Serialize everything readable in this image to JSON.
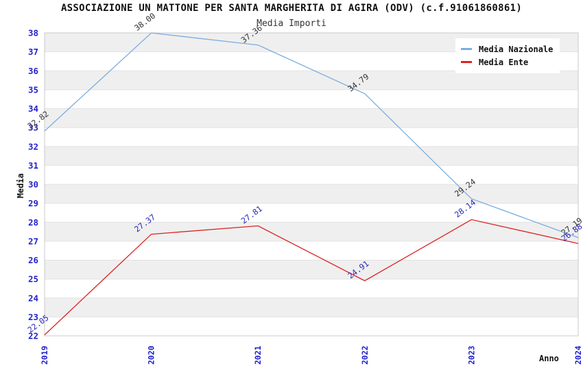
{
  "title": "ASSOCIAZIONE UN MATTONE PER SANTA MARGHERITA DI AGIRA (ODV) (c.f.91061860861)",
  "subtitle": "Media Importi",
  "chart_data": {
    "type": "line",
    "x": [
      "2019",
      "2020",
      "2021",
      "2022",
      "2023",
      "2024"
    ],
    "xlabel": "Anno",
    "ylabel": "Media",
    "ylim": [
      22,
      38
    ],
    "ytick_step": 1,
    "grid": "alternating-horizontal-bands",
    "legend_position": "top-right",
    "series": [
      {
        "name": "Media Nazionale",
        "color": "#7cace0",
        "label_color": "#333333",
        "values": [
          32.82,
          38.0,
          37.36,
          34.79,
          29.24,
          27.19
        ]
      },
      {
        "name": "Media Ente",
        "color": "#dd2222",
        "label_color": "#2828bb",
        "values": [
          22.05,
          27.37,
          27.81,
          24.91,
          28.14,
          26.88
        ]
      }
    ]
  },
  "colors": {
    "tick_label": "#2222cc",
    "band_gray": "#efefef",
    "gridline": "#e2e2e2",
    "plot_border": "#c8c8c8",
    "background": "#ffffff"
  }
}
